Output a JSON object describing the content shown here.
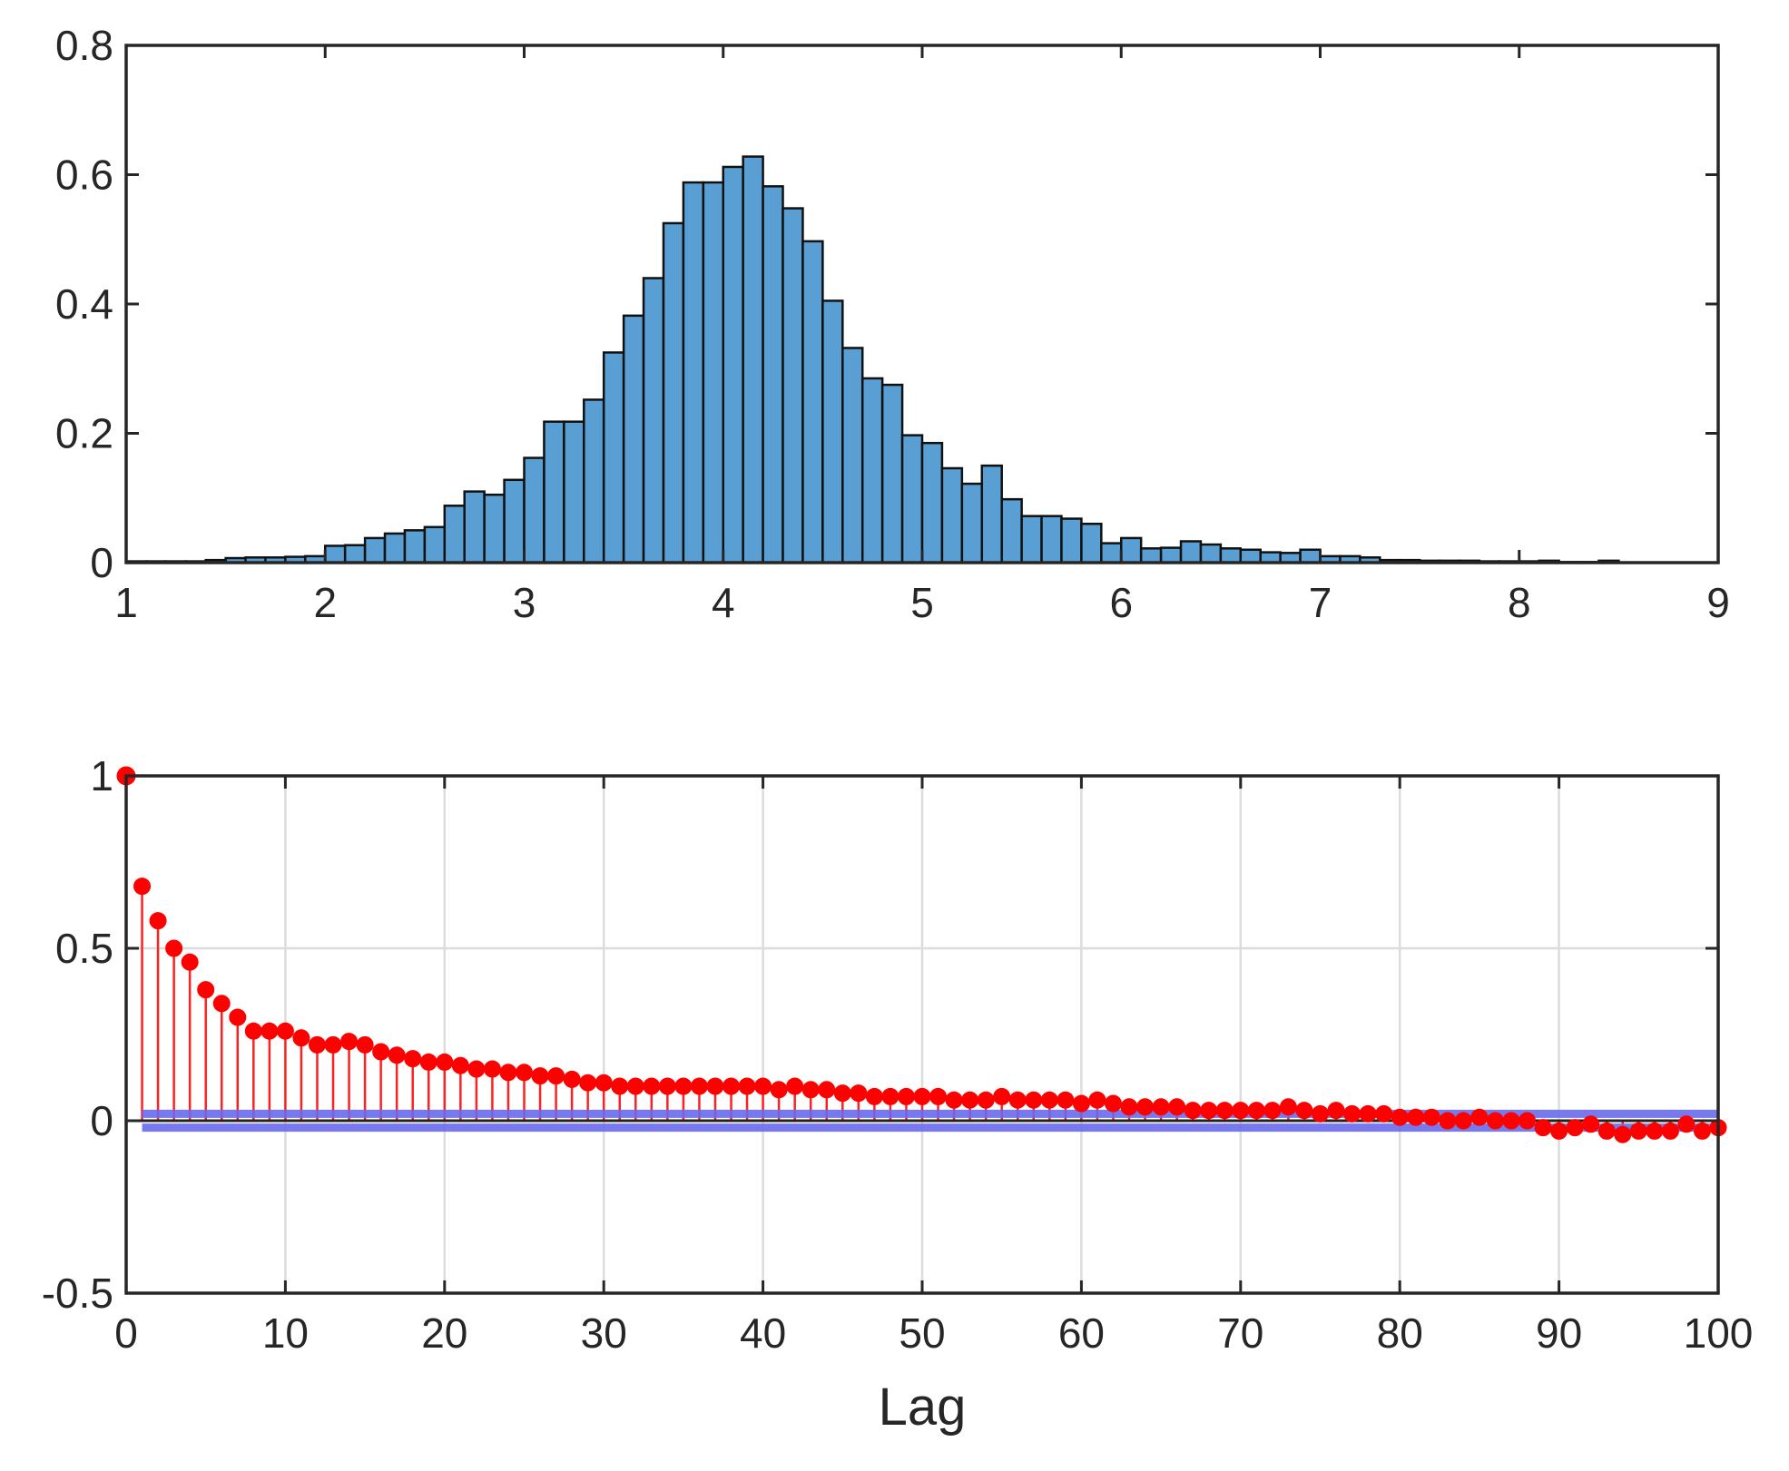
{
  "colors": {
    "bar_fill": "#5a9fd4",
    "bar_edge": "#111111",
    "stem": "#ff0000",
    "bounds": "#6a6aee",
    "axes": "#262626",
    "grid": "#dcdcdc"
  },
  "chart_data": [
    {
      "type": "bar",
      "subtype": "histogram",
      "title": "",
      "xlabel": "",
      "ylabel": "",
      "xlim": [
        1,
        9
      ],
      "ylim": [
        0,
        0.8
      ],
      "xticks": [
        "1",
        "2",
        "3",
        "4",
        "5",
        "6",
        "7",
        "8",
        "9"
      ],
      "yticks": [
        "0",
        "0.2",
        "0.4",
        "0.6",
        "0.8"
      ],
      "grid": false,
      "bin_start": 1.0,
      "bin_width": 0.1,
      "values": [
        0.002,
        0.002,
        0.002,
        0.002,
        0.004,
        0.007,
        0.008,
        0.008,
        0.009,
        0.01,
        0.026,
        0.027,
        0.038,
        0.045,
        0.05,
        0.055,
        0.088,
        0.11,
        0.105,
        0.128,
        0.162,
        0.218,
        0.218,
        0.252,
        0.325,
        0.382,
        0.44,
        0.525,
        0.588,
        0.588,
        0.612,
        0.628,
        0.582,
        0.548,
        0.497,
        0.405,
        0.332,
        0.285,
        0.275,
        0.197,
        0.185,
        0.146,
        0.122,
        0.15,
        0.098,
        0.072,
        0.072,
        0.068,
        0.06,
        0.03,
        0.038,
        0.022,
        0.023,
        0.033,
        0.028,
        0.022,
        0.02,
        0.016,
        0.015,
        0.02,
        0.01,
        0.01,
        0.008,
        0.004,
        0.004,
        0.003,
        0.003,
        0.003,
        0.002,
        0.002,
        0.002,
        0.003,
        0.001,
        0.001,
        0.003
      ]
    },
    {
      "type": "stem",
      "subtype": "autocorrelation",
      "title": "",
      "xlabel": "Lag",
      "ylabel": "",
      "xlim": [
        0,
        100
      ],
      "ylim": [
        -0.5,
        1
      ],
      "xticks": [
        "0",
        "10",
        "20",
        "30",
        "40",
        "50",
        "60",
        "70",
        "80",
        "90",
        "100"
      ],
      "yticks": [
        "-0.5",
        "0",
        "0.5",
        "1"
      ],
      "grid": true,
      "confidence_bounds": [
        0.02,
        -0.02
      ],
      "x_start": 0,
      "values": [
        1.0,
        0.68,
        0.58,
        0.5,
        0.46,
        0.38,
        0.34,
        0.3,
        0.26,
        0.26,
        0.26,
        0.24,
        0.22,
        0.22,
        0.23,
        0.22,
        0.2,
        0.19,
        0.18,
        0.17,
        0.17,
        0.16,
        0.15,
        0.15,
        0.14,
        0.14,
        0.13,
        0.13,
        0.12,
        0.11,
        0.11,
        0.1,
        0.1,
        0.1,
        0.1,
        0.1,
        0.1,
        0.1,
        0.1,
        0.1,
        0.1,
        0.09,
        0.1,
        0.09,
        0.09,
        0.08,
        0.08,
        0.07,
        0.07,
        0.07,
        0.07,
        0.07,
        0.06,
        0.06,
        0.06,
        0.07,
        0.06,
        0.06,
        0.06,
        0.06,
        0.05,
        0.06,
        0.05,
        0.04,
        0.04,
        0.04,
        0.04,
        0.03,
        0.03,
        0.03,
        0.03,
        0.03,
        0.03,
        0.04,
        0.03,
        0.02,
        0.03,
        0.02,
        0.02,
        0.02,
        0.01,
        0.01,
        0.01,
        0.0,
        0.0,
        0.01,
        0.0,
        0.0,
        0.0,
        -0.02,
        -0.03,
        -0.02,
        -0.01,
        -0.03,
        -0.04,
        -0.03,
        -0.03,
        -0.03,
        -0.01,
        -0.03,
        -0.02
      ]
    }
  ]
}
